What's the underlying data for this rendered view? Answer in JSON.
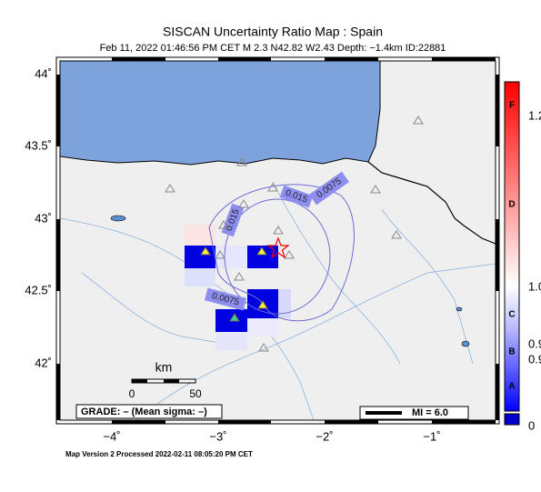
{
  "header": {
    "title": "SISCAN Uncertainty Ratio Map : Spain",
    "subtitle": "Feb 11, 2022 01:46:56 PM CET   M 2.3   N42.82 W2.43   Depth: −1.4km   ID:22881"
  },
  "map": {
    "lat_labels": [
      "44˚",
      "43.5˚",
      "43˚",
      "42.5˚",
      "42˚"
    ],
    "lon_labels": [
      "−4˚",
      "−3˚",
      "−2˚",
      "−1˚"
    ],
    "contour_labels": [
      "0.0075",
      "0.015",
      "0.015",
      "0.0075"
    ],
    "scale": {
      "unit": "km",
      "ticks": [
        "0",
        "50"
      ]
    },
    "grade": "GRADE: – (Mean sigma: –)",
    "mi_label": "MI = 6.0"
  },
  "colorbar": {
    "grades": [
      "F",
      "D",
      "C",
      "B",
      "A"
    ],
    "ticks": [
      "1.2",
      "1.0",
      "0.9",
      "0.9",
      "0"
    ]
  },
  "footer": "Map Version 2 Processed 2022-02-11 08:05:20 PM CET"
}
